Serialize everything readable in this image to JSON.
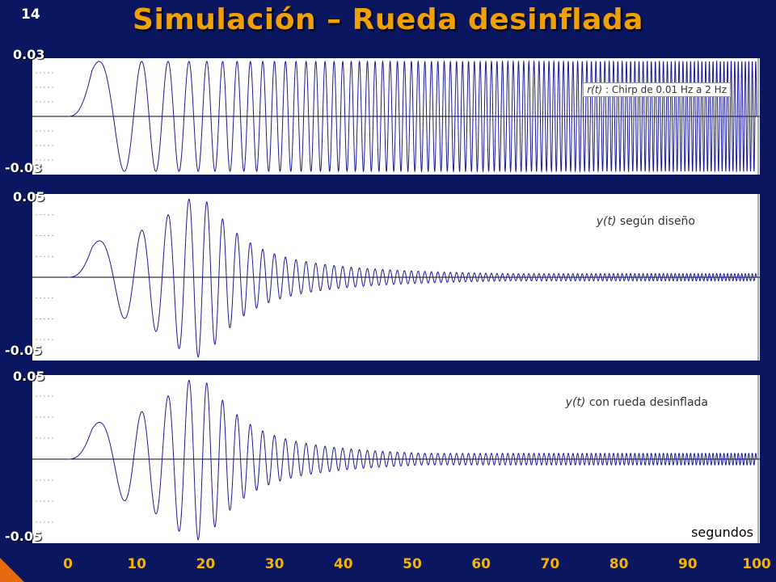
{
  "slide": {
    "number": "14",
    "title": "Simulación – Rueda desinflada"
  },
  "chart_data": [
    {
      "type": "line",
      "series": [
        {
          "name": "r(t)",
          "label_prefix": "r(t)",
          "label_suffix": " : Chirp de 0.01 Hz a 2 Hz"
        }
      ],
      "signal": {
        "amplitude": 0.03,
        "f_start": 0.01,
        "f_end": 2,
        "gain_profile": "constant"
      },
      "x_range": [
        0,
        100
      ],
      "ylim": [
        -0.03,
        0.03
      ],
      "ytick_labels": [
        "0.03",
        "-0.03"
      ],
      "color": "#1a1a9a"
    },
    {
      "type": "line",
      "series": [
        {
          "name": "y(t)",
          "label_prefix": "y(t)",
          "label_suffix": " según diseño"
        }
      ],
      "signal": {
        "peak_amplitude": 0.05,
        "f_start": 0.01,
        "f_end": 2,
        "gain_profile": "resonant",
        "final_gain": 0.05
      },
      "x_range": [
        0,
        100
      ],
      "ylim": [
        -0.05,
        0.05
      ],
      "ytick_labels": [
        "0.05",
        "-0.05"
      ],
      "color": "#1a1a9a"
    },
    {
      "type": "line",
      "series": [
        {
          "name": "y(t)",
          "label_prefix": "y(t)",
          "label_suffix": " con rueda desinflada"
        }
      ],
      "signal": {
        "peak_amplitude": 0.05,
        "f_start": 0.01,
        "f_end": 2,
        "gain_profile": "resonant",
        "final_gain": 0.08
      },
      "x_range": [
        0,
        100
      ],
      "ylim": [
        -0.05,
        0.05
      ],
      "ytick_labels": [
        "0.05",
        "-0.05"
      ],
      "color": "#1a1a9a"
    }
  ],
  "x_axis": {
    "ticks": [
      "0",
      "10",
      "20",
      "30",
      "40",
      "50",
      "60",
      "70",
      "80",
      "90",
      "100"
    ],
    "unit_label": "segundos"
  },
  "colors": {
    "background": "#0a1760",
    "title": "#f0a000",
    "xtick": "#f5b400",
    "corner": "#e86a10"
  }
}
